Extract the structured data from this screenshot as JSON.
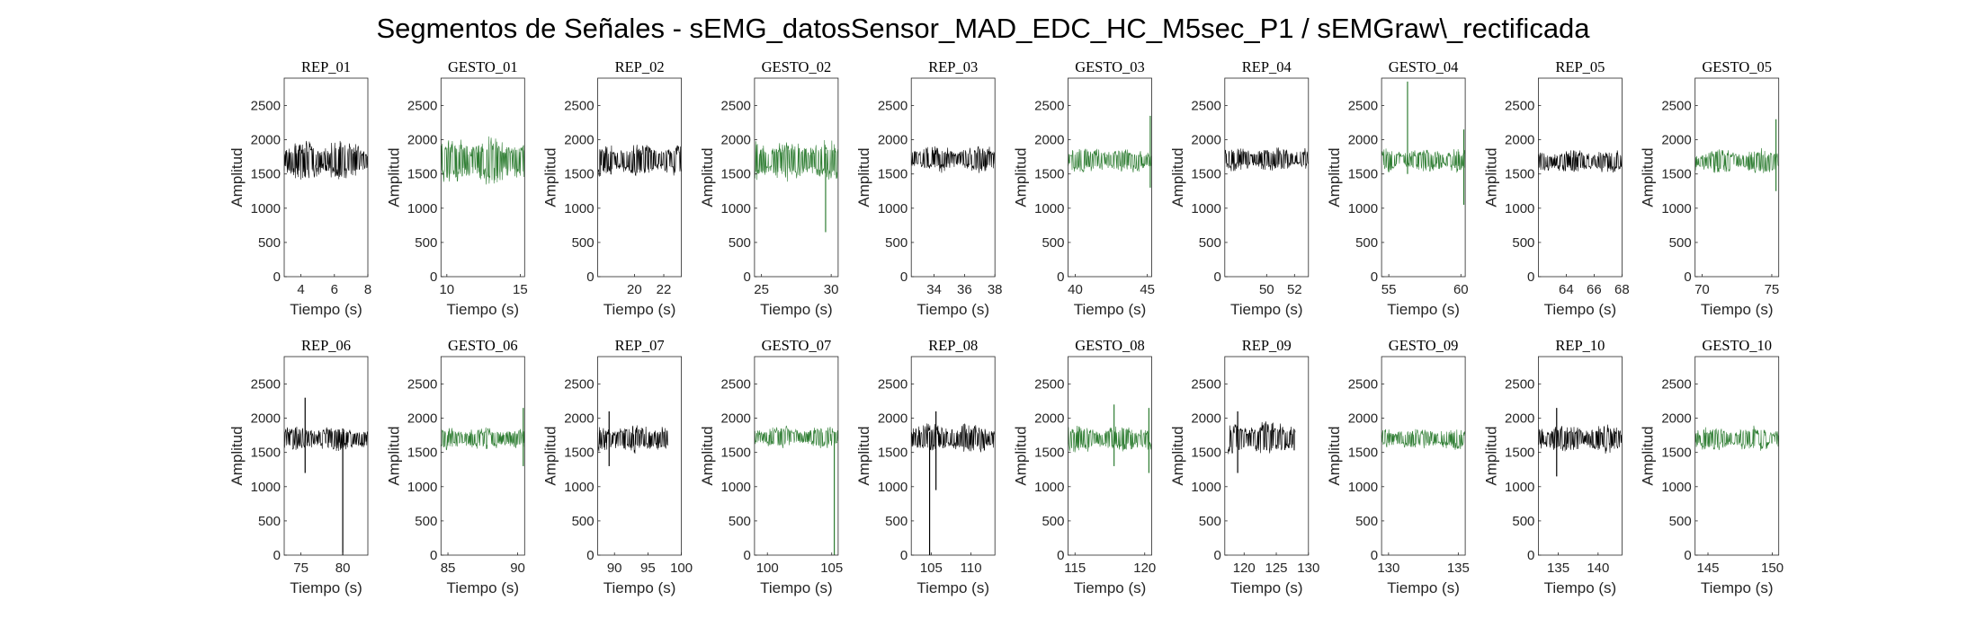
{
  "figure_title": "Segmentos de Señales - sEMG_datosSensor_MAD_EDC_HC_M5sec_P1 / sEMGraw\\_rectificada",
  "colors": {
    "rep": "#000000",
    "gesto": "#2e7d32",
    "axis": "#262626"
  },
  "chart_data": [
    {
      "type": "line",
      "title": "REP_01",
      "xlabel": "Tiempo (s)",
      "ylabel": "Amplitud",
      "xlim": [
        3,
        8
      ],
      "ylim": [
        0,
        2900
      ],
      "xticks": [
        4,
        6,
        8
      ],
      "yticks": [
        0,
        500,
        1000,
        1500,
        2000,
        2500
      ],
      "x_range": [
        3,
        8
      ],
      "center": 1700,
      "amp": 330,
      "series_color": "rep",
      "spikes": []
    },
    {
      "type": "line",
      "title": "GESTO_01",
      "xlabel": "Tiempo (s)",
      "ylabel": "Amplitud",
      "xlim": [
        9.6,
        15.3
      ],
      "ylim": [
        0,
        2900
      ],
      "xticks": [
        10,
        15
      ],
      "yticks": [
        0,
        500,
        1000,
        1500,
        2000,
        2500
      ],
      "x_range": [
        9.6,
        15.3
      ],
      "center": 1700,
      "amp": 380,
      "series_color": "gesto",
      "spikes": []
    },
    {
      "type": "line",
      "title": "REP_02",
      "xlabel": "Tiempo (s)",
      "ylabel": "Amplitud",
      "xlim": [
        17.5,
        23.2
      ],
      "ylim": [
        0,
        2900
      ],
      "xticks": [
        20,
        22
      ],
      "yticks": [
        0,
        500,
        1000,
        1500,
        2000,
        2500
      ],
      "x_range": [
        17.5,
        23.2
      ],
      "center": 1700,
      "amp": 270,
      "series_color": "rep",
      "spikes": []
    },
    {
      "type": "line",
      "title": "GESTO_02",
      "xlabel": "Tiempo (s)",
      "ylabel": "Amplitud",
      "xlim": [
        24.5,
        30.5
      ],
      "ylim": [
        0,
        2900
      ],
      "xticks": [
        25,
        30
      ],
      "yticks": [
        0,
        500,
        1000,
        1500,
        2000,
        2500
      ],
      "x_range": [
        24.5,
        30.5
      ],
      "center": 1700,
      "amp": 330,
      "series_color": "gesto",
      "spikes": [
        {
          "x": 29.6,
          "lo": 650,
          "hi": 1800
        }
      ]
    },
    {
      "type": "line",
      "title": "REP_03",
      "xlabel": "Tiempo (s)",
      "ylabel": "Amplitud",
      "xlim": [
        32.5,
        38
      ],
      "ylim": [
        0,
        2900
      ],
      "xticks": [
        34,
        36,
        38
      ],
      "yticks": [
        0,
        500,
        1000,
        1500,
        2000,
        2500
      ],
      "x_range": [
        32.5,
        38
      ],
      "center": 1720,
      "amp": 220,
      "series_color": "rep",
      "spikes": []
    },
    {
      "type": "line",
      "title": "GESTO_03",
      "xlabel": "Tiempo (s)",
      "ylabel": "Amplitud",
      "xlim": [
        39.5,
        45.3
      ],
      "ylim": [
        0,
        2900
      ],
      "xticks": [
        40,
        45
      ],
      "yticks": [
        0,
        500,
        1000,
        1500,
        2000,
        2500
      ],
      "x_range": [
        39.5,
        45.3
      ],
      "center": 1700,
      "amp": 210,
      "series_color": "gesto",
      "spikes": [
        {
          "x": 45.2,
          "lo": 1300,
          "hi": 2350
        }
      ]
    },
    {
      "type": "line",
      "title": "REP_04",
      "xlabel": "Tiempo (s)",
      "ylabel": "Amplitud",
      "xlim": [
        47,
        53
      ],
      "ylim": [
        0,
        2900
      ],
      "xticks": [
        50,
        52
      ],
      "yticks": [
        0,
        500,
        1000,
        1500,
        2000,
        2500
      ],
      "x_range": [
        47,
        53
      ],
      "center": 1720,
      "amp": 200,
      "series_color": "rep",
      "spikes": []
    },
    {
      "type": "line",
      "title": "GESTO_04",
      "xlabel": "Tiempo (s)",
      "ylabel": "Amplitud",
      "xlim": [
        54.5,
        60.3
      ],
      "ylim": [
        0,
        2900
      ],
      "xticks": [
        55,
        60
      ],
      "yticks": [
        0,
        500,
        1000,
        1500,
        2000,
        2500
      ],
      "x_range": [
        54.5,
        60.3
      ],
      "center": 1700,
      "amp": 200,
      "series_color": "gesto",
      "spikes": [
        {
          "x": 56.3,
          "lo": 1500,
          "hi": 2850
        },
        {
          "x": 60.2,
          "lo": 1050,
          "hi": 2150
        }
      ]
    },
    {
      "type": "line",
      "title": "REP_05",
      "xlabel": "Tiempo (s)",
      "ylabel": "Amplitud",
      "xlim": [
        62,
        68
      ],
      "ylim": [
        0,
        2900
      ],
      "xticks": [
        64,
        66,
        68
      ],
      "yticks": [
        0,
        500,
        1000,
        1500,
        2000,
        2500
      ],
      "x_range": [
        62,
        68
      ],
      "center": 1680,
      "amp": 190,
      "series_color": "rep",
      "spikes": []
    },
    {
      "type": "line",
      "title": "GESTO_05",
      "xlabel": "Tiempo (s)",
      "ylabel": "Amplitud",
      "xlim": [
        69.5,
        75.5
      ],
      "ylim": [
        0,
        2900
      ],
      "xticks": [
        70,
        75
      ],
      "yticks": [
        0,
        500,
        1000,
        1500,
        2000,
        2500
      ],
      "x_range": [
        69.5,
        75.5
      ],
      "center": 1680,
      "amp": 200,
      "series_color": "gesto",
      "spikes": [
        {
          "x": 75.3,
          "lo": 1250,
          "hi": 2300
        }
      ]
    },
    {
      "type": "line",
      "title": "REP_06",
      "xlabel": "Tiempo (s)",
      "ylabel": "Amplitud",
      "xlim": [
        73,
        83
      ],
      "ylim": [
        0,
        2900
      ],
      "xticks": [
        75,
        80
      ],
      "yticks": [
        0,
        500,
        1000,
        1500,
        2000,
        2500
      ],
      "x_range": [
        73,
        83
      ],
      "center": 1700,
      "amp": 200,
      "series_color": "rep",
      "spikes": [
        {
          "x": 75.5,
          "lo": 1200,
          "hi": 2300
        },
        {
          "x": 80,
          "lo": 0,
          "hi": 1850
        }
      ]
    },
    {
      "type": "line",
      "title": "GESTO_06",
      "xlabel": "Tiempo (s)",
      "ylabel": "Amplitud",
      "xlim": [
        84.5,
        90.5
      ],
      "ylim": [
        0,
        2900
      ],
      "xticks": [
        85,
        90
      ],
      "yticks": [
        0,
        500,
        1000,
        1500,
        2000,
        2500
      ],
      "x_range": [
        84.5,
        90.5
      ],
      "center": 1700,
      "amp": 180,
      "series_color": "gesto",
      "spikes": [
        {
          "x": 90.4,
          "lo": 1300,
          "hi": 2150
        }
      ]
    },
    {
      "type": "line",
      "title": "REP_07",
      "xlabel": "Tiempo (s)",
      "ylabel": "Amplitud",
      "xlim": [
        87.5,
        100
      ],
      "ylim": [
        0,
        2900
      ],
      "xticks": [
        90,
        95,
        100
      ],
      "yticks": [
        0,
        500,
        1000,
        1500,
        2000,
        2500
      ],
      "x_range": [
        87.5,
        98
      ],
      "center": 1700,
      "amp": 240,
      "series_color": "rep",
      "spikes": [
        {
          "x": 89.2,
          "lo": 1300,
          "hi": 2100
        }
      ]
    },
    {
      "type": "line",
      "title": "GESTO_07",
      "xlabel": "Tiempo (s)",
      "ylabel": "Amplitud",
      "xlim": [
        99,
        105.5
      ],
      "ylim": [
        0,
        2900
      ],
      "xticks": [
        100,
        105
      ],
      "yticks": [
        0,
        500,
        1000,
        1500,
        2000,
        2500
      ],
      "x_range": [
        99,
        105.5
      ],
      "center": 1720,
      "amp": 180,
      "series_color": "gesto",
      "spikes": [
        {
          "x": 105.2,
          "lo": 0,
          "hi": 1800
        }
      ]
    },
    {
      "type": "line",
      "title": "REP_08",
      "xlabel": "Tiempo (s)",
      "ylabel": "Amplitud",
      "xlim": [
        102.5,
        113
      ],
      "ylim": [
        0,
        2900
      ],
      "xticks": [
        105,
        110
      ],
      "yticks": [
        0,
        500,
        1000,
        1500,
        2000,
        2500
      ],
      "x_range": [
        102.5,
        113
      ],
      "center": 1700,
      "amp": 240,
      "series_color": "rep",
      "spikes": [
        {
          "x": 104.8,
          "lo": 0,
          "hi": 1800
        },
        {
          "x": 105.6,
          "lo": 950,
          "hi": 2100
        }
      ]
    },
    {
      "type": "line",
      "title": "GESTO_08",
      "xlabel": "Tiempo (s)",
      "ylabel": "Amplitud",
      "xlim": [
        114.5,
        120.5
      ],
      "ylim": [
        0,
        2900
      ],
      "xticks": [
        115,
        120
      ],
      "yticks": [
        0,
        500,
        1000,
        1500,
        2000,
        2500
      ],
      "x_range": [
        114.5,
        120.5
      ],
      "center": 1700,
      "amp": 220,
      "series_color": "gesto",
      "spikes": [
        {
          "x": 117.8,
          "lo": 1300,
          "hi": 2200
        },
        {
          "x": 120.3,
          "lo": 1200,
          "hi": 2150
        }
      ]
    },
    {
      "type": "line",
      "title": "REP_09",
      "xlabel": "Tiempo (s)",
      "ylabel": "Amplitud",
      "xlim": [
        117,
        130
      ],
      "ylim": [
        0,
        2900
      ],
      "xticks": [
        120,
        125,
        130
      ],
      "yticks": [
        0,
        500,
        1000,
        1500,
        2000,
        2500
      ],
      "x_range": [
        117.5,
        128
      ],
      "center": 1700,
      "amp": 280,
      "series_color": "rep",
      "spikes": [
        {
          "x": 119,
          "lo": 1200,
          "hi": 2100
        }
      ]
    },
    {
      "type": "line",
      "title": "GESTO_09",
      "xlabel": "Tiempo (s)",
      "ylabel": "Amplitud",
      "xlim": [
        129.5,
        135.5
      ],
      "ylim": [
        0,
        2900
      ],
      "xticks": [
        130,
        135
      ],
      "yticks": [
        0,
        500,
        1000,
        1500,
        2000,
        2500
      ],
      "x_range": [
        129.5,
        135.5
      ],
      "center": 1700,
      "amp": 180,
      "series_color": "gesto",
      "spikes": []
    },
    {
      "type": "line",
      "title": "REP_10",
      "xlabel": "Tiempo (s)",
      "ylabel": "Amplitud",
      "xlim": [
        132.5,
        143
      ],
      "ylim": [
        0,
        2900
      ],
      "xticks": [
        135,
        140
      ],
      "yticks": [
        0,
        500,
        1000,
        1500,
        2000,
        2500
      ],
      "x_range": [
        132.5,
        143
      ],
      "center": 1700,
      "amp": 230,
      "series_color": "rep",
      "spikes": [
        {
          "x": 134.8,
          "lo": 1150,
          "hi": 2150
        }
      ]
    },
    {
      "type": "line",
      "title": "GESTO_10",
      "xlabel": "Tiempo (s)",
      "ylabel": "Amplitud",
      "xlim": [
        144,
        150.5
      ],
      "ylim": [
        0,
        2900
      ],
      "xticks": [
        145,
        150
      ],
      "yticks": [
        0,
        500,
        1000,
        1500,
        2000,
        2500
      ],
      "x_range": [
        144,
        150.5
      ],
      "center": 1700,
      "amp": 200,
      "series_color": "gesto",
      "spikes": []
    }
  ]
}
